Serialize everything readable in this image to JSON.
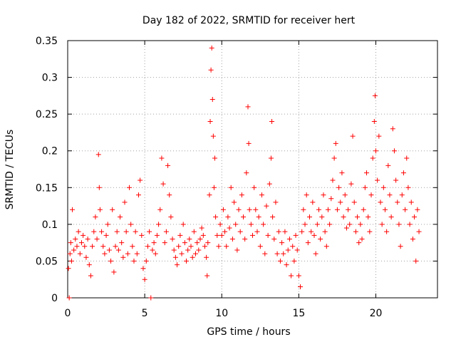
{
  "chart_data": {
    "type": "scatter",
    "title": "Day 182 of 2022, SRMTID for receiver hert",
    "xlabel": "GPS time / hours",
    "ylabel": "SRMTID / TECUs",
    "xlim": [
      0,
      24
    ],
    "ylim": [
      0,
      0.35
    ],
    "xticks": [
      0,
      5,
      10,
      15,
      20
    ],
    "xtick_labels": [
      "0",
      "5",
      "10",
      "15",
      "20"
    ],
    "yticks": [
      0,
      0.05,
      0.1,
      0.15,
      0.2,
      0.25,
      0.3,
      0.35
    ],
    "ytick_labels": [
      "0",
      "0.05",
      "0.1",
      "0.15",
      "0.2",
      "0.25",
      "0.3",
      "0.35"
    ],
    "grid": true,
    "marker": "+",
    "color": "#ff0000",
    "series": [
      {
        "name": "SRMTID",
        "points": [
          [
            0.05,
            0.04
          ],
          [
            0.1,
            0.0
          ],
          [
            0.15,
            0.06
          ],
          [
            0.2,
            0.075
          ],
          [
            0.25,
            0.05
          ],
          [
            0.3,
            0.12
          ],
          [
            0.4,
            0.065
          ],
          [
            0.5,
            0.08
          ],
          [
            0.6,
            0.07
          ],
          [
            0.7,
            0.09
          ],
          [
            0.8,
            0.06
          ],
          [
            0.9,
            0.075
          ],
          [
            1.0,
            0.085
          ],
          [
            1.1,
            0.07
          ],
          [
            1.2,
            0.055
          ],
          [
            1.3,
            0.08
          ],
          [
            1.4,
            0.045
          ],
          [
            1.5,
            0.03
          ],
          [
            1.6,
            0.07
          ],
          [
            1.7,
            0.09
          ],
          [
            1.8,
            0.11
          ],
          [
            1.9,
            0.08
          ],
          [
            2.0,
            0.195
          ],
          [
            2.05,
            0.15
          ],
          [
            2.1,
            0.12
          ],
          [
            2.2,
            0.09
          ],
          [
            2.3,
            0.07
          ],
          [
            2.4,
            0.06
          ],
          [
            2.5,
            0.085
          ],
          [
            2.6,
            0.1
          ],
          [
            2.7,
            0.065
          ],
          [
            2.8,
            0.05
          ],
          [
            2.9,
            0.12
          ],
          [
            3.0,
            0.035
          ],
          [
            3.1,
            0.07
          ],
          [
            3.2,
            0.09
          ],
          [
            3.3,
            0.065
          ],
          [
            3.4,
            0.11
          ],
          [
            3.5,
            0.075
          ],
          [
            3.6,
            0.055
          ],
          [
            3.7,
            0.13
          ],
          [
            3.8,
            0.09
          ],
          [
            3.9,
            0.06
          ],
          [
            4.0,
            0.15
          ],
          [
            4.1,
            0.1
          ],
          [
            4.2,
            0.07
          ],
          [
            4.3,
            0.05
          ],
          [
            4.4,
            0.09
          ],
          [
            4.5,
            0.06
          ],
          [
            4.6,
            0.14
          ],
          [
            4.7,
            0.16
          ],
          [
            4.8,
            0.085
          ],
          [
            4.9,
            0.04
          ],
          [
            5.0,
            0.025
          ],
          [
            5.1,
            0.05
          ],
          [
            5.2,
            0.07
          ],
          [
            5.3,
            0.09
          ],
          [
            5.4,
            0.0
          ],
          [
            5.5,
            0.065
          ],
          [
            5.6,
            0.075
          ],
          [
            5.7,
            0.06
          ],
          [
            5.8,
            0.085
          ],
          [
            5.9,
            0.1
          ],
          [
            6.0,
            0.12
          ],
          [
            6.1,
            0.19
          ],
          [
            6.2,
            0.155
          ],
          [
            6.3,
            0.075
          ],
          [
            6.4,
            0.09
          ],
          [
            6.5,
            0.18
          ],
          [
            6.6,
            0.14
          ],
          [
            6.7,
            0.11
          ],
          [
            6.8,
            0.08
          ],
          [
            6.9,
            0.065
          ],
          [
            7.0,
            0.055
          ],
          [
            7.1,
            0.045
          ],
          [
            7.2,
            0.07
          ],
          [
            7.3,
            0.085
          ],
          [
            7.4,
            0.06
          ],
          [
            7.5,
            0.1
          ],
          [
            7.6,
            0.075
          ],
          [
            7.7,
            0.05
          ],
          [
            7.8,
            0.065
          ],
          [
            7.9,
            0.08
          ],
          [
            8.0,
            0.07
          ],
          [
            8.1,
            0.055
          ],
          [
            8.2,
            0.09
          ],
          [
            8.3,
            0.06
          ],
          [
            8.4,
            0.075
          ],
          [
            8.5,
            0.065
          ],
          [
            8.6,
            0.08
          ],
          [
            8.7,
            0.095
          ],
          [
            8.8,
            0.085
          ],
          [
            8.9,
            0.07
          ],
          [
            9.0,
            0.055
          ],
          [
            9.05,
            0.03
          ],
          [
            9.1,
            0.075
          ],
          [
            9.2,
            0.14
          ],
          [
            9.25,
            0.24
          ],
          [
            9.3,
            0.31
          ],
          [
            9.35,
            0.34
          ],
          [
            9.4,
            0.27
          ],
          [
            9.45,
            0.22
          ],
          [
            9.5,
            0.15
          ],
          [
            9.55,
            0.19
          ],
          [
            9.6,
            0.11
          ],
          [
            9.7,
            0.085
          ],
          [
            9.8,
            0.07
          ],
          [
            9.9,
            0.1
          ],
          [
            10.0,
            0.085
          ],
          [
            10.1,
            0.12
          ],
          [
            10.2,
            0.09
          ],
          [
            10.3,
            0.07
          ],
          [
            10.4,
            0.11
          ],
          [
            10.5,
            0.095
          ],
          [
            10.6,
            0.15
          ],
          [
            10.7,
            0.08
          ],
          [
            10.8,
            0.13
          ],
          [
            10.9,
            0.1
          ],
          [
            11.0,
            0.065
          ],
          [
            11.1,
            0.12
          ],
          [
            11.2,
            0.09
          ],
          [
            11.3,
            0.14
          ],
          [
            11.4,
            0.11
          ],
          [
            11.5,
            0.08
          ],
          [
            11.6,
            0.17
          ],
          [
            11.7,
            0.26
          ],
          [
            11.75,
            0.21
          ],
          [
            11.8,
            0.12
          ],
          [
            11.9,
            0.1
          ],
          [
            12.0,
            0.085
          ],
          [
            12.1,
            0.15
          ],
          [
            12.2,
            0.12
          ],
          [
            12.3,
            0.09
          ],
          [
            12.4,
            0.11
          ],
          [
            12.5,
            0.07
          ],
          [
            12.6,
            0.14
          ],
          [
            12.7,
            0.1
          ],
          [
            12.8,
            0.06
          ],
          [
            12.9,
            0.125
          ],
          [
            13.0,
            0.085
          ],
          [
            13.1,
            0.155
          ],
          [
            13.2,
            0.19
          ],
          [
            13.25,
            0.24
          ],
          [
            13.3,
            0.11
          ],
          [
            13.4,
            0.08
          ],
          [
            13.5,
            0.13
          ],
          [
            13.6,
            0.06
          ],
          [
            13.7,
            0.09
          ],
          [
            13.8,
            0.05
          ],
          [
            13.9,
            0.075
          ],
          [
            14.0,
            0.06
          ],
          [
            14.1,
            0.09
          ],
          [
            14.2,
            0.045
          ],
          [
            14.3,
            0.065
          ],
          [
            14.4,
            0.08
          ],
          [
            14.5,
            0.03
          ],
          [
            14.6,
            0.07
          ],
          [
            14.7,
            0.05
          ],
          [
            14.8,
            0.085
          ],
          [
            14.9,
            0.065
          ],
          [
            15.0,
            0.03
          ],
          [
            15.1,
            0.015
          ],
          [
            15.2,
            0.09
          ],
          [
            15.3,
            0.12
          ],
          [
            15.4,
            0.1
          ],
          [
            15.5,
            0.14
          ],
          [
            15.6,
            0.075
          ],
          [
            15.7,
            0.11
          ],
          [
            15.8,
            0.09
          ],
          [
            15.9,
            0.13
          ],
          [
            16.0,
            0.085
          ],
          [
            16.1,
            0.06
          ],
          [
            16.2,
            0.1
          ],
          [
            16.3,
            0.12
          ],
          [
            16.4,
            0.08
          ],
          [
            16.5,
            0.11
          ],
          [
            16.6,
            0.14
          ],
          [
            16.7,
            0.09
          ],
          [
            16.8,
            0.07
          ],
          [
            16.9,
            0.12
          ],
          [
            17.0,
            0.1
          ],
          [
            17.1,
            0.135
          ],
          [
            17.2,
            0.16
          ],
          [
            17.3,
            0.19
          ],
          [
            17.4,
            0.21
          ],
          [
            17.5,
            0.12
          ],
          [
            17.6,
            0.15
          ],
          [
            17.7,
            0.13
          ],
          [
            17.8,
            0.17
          ],
          [
            17.9,
            0.11
          ],
          [
            18.0,
            0.14
          ],
          [
            18.1,
            0.095
          ],
          [
            18.2,
            0.12
          ],
          [
            18.3,
            0.1
          ],
          [
            18.4,
            0.155
          ],
          [
            18.5,
            0.22
          ],
          [
            18.6,
            0.13
          ],
          [
            18.7,
            0.09
          ],
          [
            18.8,
            0.11
          ],
          [
            18.9,
            0.075
          ],
          [
            19.0,
            0.1
          ],
          [
            19.1,
            0.08
          ],
          [
            19.2,
            0.12
          ],
          [
            19.3,
            0.15
          ],
          [
            19.4,
            0.17
          ],
          [
            19.5,
            0.11
          ],
          [
            19.6,
            0.09
          ],
          [
            19.7,
            0.14
          ],
          [
            19.8,
            0.19
          ],
          [
            19.9,
            0.24
          ],
          [
            19.95,
            0.275
          ],
          [
            20.0,
            0.2
          ],
          [
            20.1,
            0.16
          ],
          [
            20.2,
            0.22
          ],
          [
            20.3,
            0.13
          ],
          [
            20.4,
            0.1
          ],
          [
            20.5,
            0.15
          ],
          [
            20.6,
            0.12
          ],
          [
            20.7,
            0.09
          ],
          [
            20.8,
            0.18
          ],
          [
            20.9,
            0.14
          ],
          [
            21.0,
            0.11
          ],
          [
            21.1,
            0.23
          ],
          [
            21.2,
            0.2
          ],
          [
            21.3,
            0.16
          ],
          [
            21.4,
            0.13
          ],
          [
            21.5,
            0.1
          ],
          [
            21.6,
            0.07
          ],
          [
            21.7,
            0.14
          ],
          [
            21.8,
            0.17
          ],
          [
            21.9,
            0.12
          ],
          [
            22.0,
            0.19
          ],
          [
            22.1,
            0.15
          ],
          [
            22.2,
            0.1
          ],
          [
            22.3,
            0.13
          ],
          [
            22.4,
            0.08
          ],
          [
            22.5,
            0.11
          ],
          [
            22.6,
            0.05
          ],
          [
            22.7,
            0.12
          ],
          [
            22.8,
            0.09
          ]
        ]
      }
    ]
  }
}
